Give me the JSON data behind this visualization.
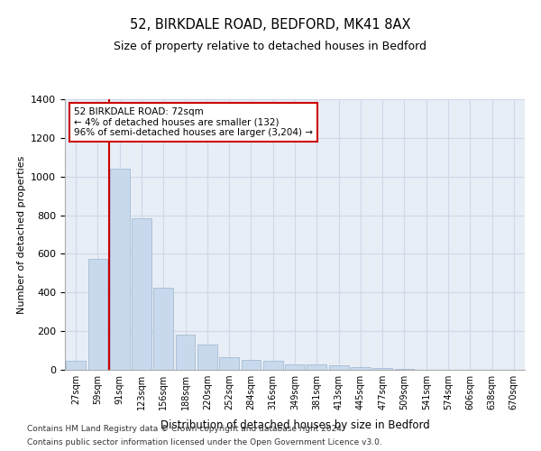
{
  "title": "52, BIRKDALE ROAD, BEDFORD, MK41 8AX",
  "subtitle": "Size of property relative to detached houses in Bedford",
  "xlabel": "Distribution of detached houses by size in Bedford",
  "ylabel": "Number of detached properties",
  "categories": [
    "27sqm",
    "59sqm",
    "91sqm",
    "123sqm",
    "156sqm",
    "188sqm",
    "220sqm",
    "252sqm",
    "284sqm",
    "316sqm",
    "349sqm",
    "381sqm",
    "413sqm",
    "445sqm",
    "477sqm",
    "509sqm",
    "541sqm",
    "574sqm",
    "606sqm",
    "638sqm",
    "670sqm"
  ],
  "values": [
    47,
    575,
    1040,
    785,
    425,
    180,
    130,
    65,
    52,
    47,
    30,
    28,
    22,
    14,
    10,
    5,
    0,
    0,
    0,
    0,
    0
  ],
  "bar_color": "#c8d9ee",
  "bar_edge_color": "#9ab3cc",
  "grid_color": "#d0d8e8",
  "background_color": "#e8eef6",
  "annotation_box_text": "52 BIRKDALE ROAD: 72sqm\n← 4% of detached houses are smaller (132)\n96% of semi-detached houses are larger (3,204) →",
  "annotation_box_color": "#cc0000",
  "vline_color": "#cc0000",
  "vline_x": 1.5,
  "ylim": [
    0,
    1400
  ],
  "yticks": [
    0,
    200,
    400,
    600,
    800,
    1000,
    1200,
    1400
  ],
  "footer_line1": "Contains HM Land Registry data © Crown copyright and database right 2024.",
  "footer_line2": "Contains public sector information licensed under the Open Government Licence v3.0."
}
